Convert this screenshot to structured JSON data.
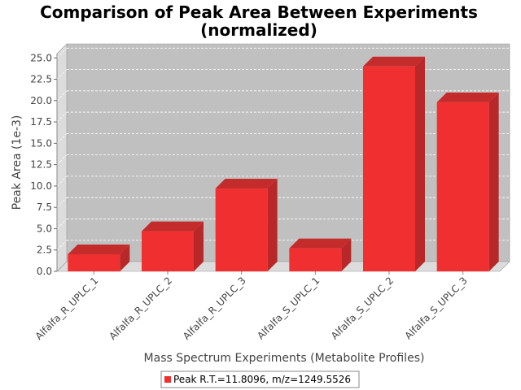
{
  "chart_data": {
    "type": "bar",
    "title": "Comparison of Peak Area Between Experiments\n(normalized)",
    "title_lines": [
      "Comparison of Peak Area Between Experiments",
      "(normalized)"
    ],
    "xlabel": "Mass Spectrum Experiments (Metabolite Profiles)",
    "ylabel": "Peak Area (1e-3)",
    "categories": [
      "Alfalfa_R_UPLC_1",
      "Alfalfa_R_UPLC_2",
      "Alfalfa_R_UPLC_3",
      "Alfalfa_S_UPLC_1",
      "Alfalfa_S_UPLC_2",
      "Alfalfa_S_UPLC_3"
    ],
    "series": [
      {
        "name": "Peak R.T.=11.8096, m/z=1249.5526",
        "values": [
          2.0,
          4.7,
          9.7,
          2.7,
          24.0,
          19.8
        ],
        "color": "#f03030"
      }
    ],
    "yticks": [
      "0.0",
      "2.5",
      "5.0",
      "7.5",
      "10.0",
      "12.5",
      "15.0",
      "17.5",
      "20.0",
      "22.5",
      "25.0"
    ],
    "ylim": [
      0,
      25.5
    ],
    "grid": true,
    "legend_position": "bottom",
    "three_d": true,
    "plot_background": "#c0c0c0"
  }
}
